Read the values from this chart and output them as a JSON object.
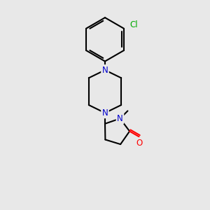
{
  "background_color": "#e8e8e8",
  "bond_color": "#000000",
  "nitrogen_color": "#0000cc",
  "oxygen_color": "#ff0000",
  "chlorine_color": "#00aa00",
  "line_width": 1.5,
  "figsize": [
    3.0,
    3.0
  ],
  "dpi": 100,
  "xlim": [
    0,
    10
  ],
  "ylim": [
    0,
    10
  ]
}
